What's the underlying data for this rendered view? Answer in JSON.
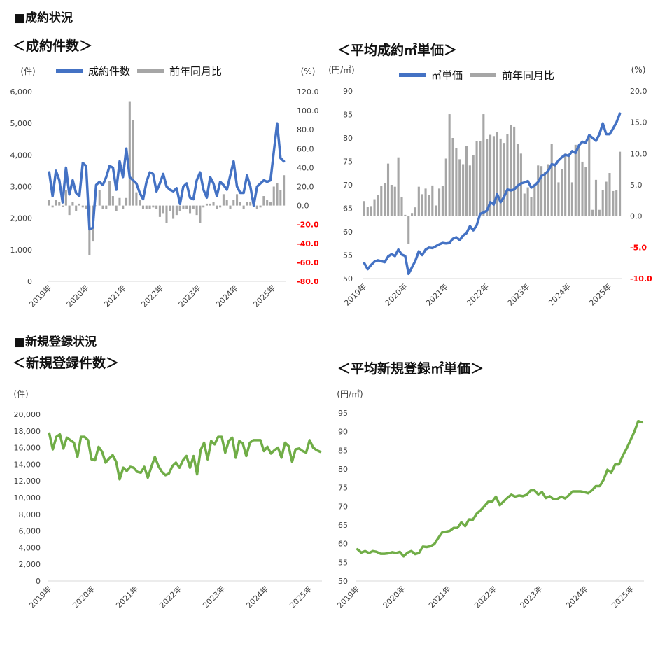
{
  "section1_title": "■成約状況",
  "section2_title": "■新規登録状況",
  "colors": {
    "blue": "#4472c4",
    "gray": "#a6a6a6",
    "green": "#70ad47",
    "red": "#ff0000",
    "axis": "#d9d9d9"
  },
  "chart_data": [
    {
      "id": "contracts",
      "type": "bar+line",
      "title": "＜成約件数＞",
      "left_unit": "(件)",
      "right_unit": "(%)",
      "legend": [
        "成約件数",
        "前年同月比"
      ],
      "x_tick_labels": [
        "2019年",
        "2020年",
        "2021年",
        "2022年",
        "2023年",
        "2024年",
        "2025年"
      ],
      "left_ticks": [
        "6,000",
        "5,000",
        "4,000",
        "3,000",
        "2,000",
        "1,000",
        "0"
      ],
      "left_ylim": [
        0,
        6000
      ],
      "right_ticks": [
        "120.0",
        "100.0",
        "80.0",
        "60.0",
        "40.0",
        "20.0",
        "0.0",
        "-20.0",
        "-40.0",
        "-60.0",
        "-80.0"
      ],
      "right_ylim": [
        -80,
        120
      ],
      "series": [
        {
          "name": "成約件数",
          "kind": "line",
          "values": [
            3450,
            2700,
            3500,
            3200,
            2500,
            3600,
            2750,
            3200,
            2800,
            2700,
            3750,
            3650,
            1650,
            1700,
            3050,
            3150,
            3050,
            3300,
            3650,
            3600,
            2900,
            3800,
            3300,
            4200,
            3300,
            3200,
            3100,
            2800,
            2600,
            3150,
            3450,
            3400,
            2850,
            3100,
            3400,
            3000,
            2900,
            2850,
            2950,
            2450,
            3000,
            3100,
            2650,
            2600,
            3200,
            3450,
            2900,
            2650,
            3300,
            3100,
            2700,
            3150,
            3050,
            2900,
            3350,
            3800,
            3000,
            2800,
            2800,
            3350,
            3000,
            2400,
            3000,
            3100,
            3200,
            3150,
            3200,
            4100,
            5000,
            3900,
            3800
          ]
        },
        {
          "name": "前年同月比",
          "kind": "bar",
          "values": [
            6,
            -2,
            6,
            4,
            -1,
            16,
            -10,
            4,
            -6,
            2,
            -2,
            -4,
            -52,
            -38,
            0,
            16,
            -4,
            -4,
            26,
            10,
            -6,
            8,
            -4,
            8,
            110,
            90,
            14,
            6,
            -4,
            -4,
            -4,
            -2,
            -4,
            -12,
            -8,
            -18,
            -6,
            -14,
            -10,
            -6,
            -4,
            -4,
            -8,
            -4,
            -10,
            -18,
            -2,
            2,
            2,
            4,
            -4,
            -2,
            12,
            6,
            -4,
            6,
            12,
            4,
            -4,
            4,
            4,
            6,
            -4,
            -2,
            10,
            6,
            4,
            20,
            24,
            16,
            32
          ]
        }
      ]
    },
    {
      "id": "contract_price",
      "type": "bar+line",
      "title": "＜平均成約㎡単価＞",
      "left_unit": "(円/㎡)",
      "right_unit": "(%)",
      "legend": [
        "㎡単価",
        "前年同月比"
      ],
      "x_tick_labels": [
        "2019年",
        "2020年",
        "2021年",
        "2022年",
        "2023年",
        "2024年",
        "2025年"
      ],
      "left_ticks": [
        "90",
        "85",
        "80",
        "75",
        "70",
        "65",
        "60",
        "55",
        "50"
      ],
      "left_ylim": [
        50,
        90
      ],
      "right_ticks": [
        "20.0",
        "15.0",
        "10.0",
        "5.0",
        "0.0",
        "-5.0",
        "-10.0"
      ],
      "right_ylim": [
        -10,
        20
      ],
      "series": [
        {
          "name": "㎡単価",
          "kind": "line",
          "values": [
            53.3,
            52.0,
            52.9,
            53.6,
            53.9,
            53.7,
            53.5,
            54.7,
            55.2,
            54.8,
            56.2,
            55.1,
            54.8,
            51.0,
            52.4,
            53.8,
            55.8,
            55.0,
            56.2,
            56.6,
            56.5,
            56.9,
            57.3,
            57.6,
            57.5,
            57.6,
            58.5,
            58.8,
            58.2,
            59.2,
            59.7,
            61.2,
            60.3,
            61.4,
            63.8,
            64.1,
            64.5,
            66.3,
            65.8,
            68.0,
            66.3,
            67.4,
            69.0,
            68.8,
            69.0,
            69.8,
            70.3,
            70.5,
            70.8,
            69.4,
            69.9,
            70.6,
            71.9,
            72.3,
            73.0,
            74.4,
            74.2,
            75.2,
            75.9,
            76.4,
            76.2,
            77.2,
            76.8,
            78.4,
            79.2,
            79.0,
            80.6,
            80.0,
            79.4,
            80.8,
            83.1,
            80.8,
            80.8,
            82.0,
            83.3,
            85.2
          ]
        },
        {
          "name": "前年同月比",
          "kind": "bar",
          "values": [
            2.4,
            1.5,
            1.6,
            2.7,
            3.4,
            4.8,
            5.3,
            8.4,
            5.0,
            4.7,
            9.4,
            3.0,
            0.2,
            -4.5,
            0.5,
            1.4,
            4.7,
            3.5,
            4.4,
            3.4,
            4.9,
            1.7,
            4.4,
            4.8,
            9.2,
            16.3,
            12.5,
            10.9,
            9.1,
            8.3,
            11.2,
            8.1,
            9.7,
            12.0,
            12.0,
            16.3,
            12.3,
            13.0,
            12.8,
            13.4,
            12.4,
            11.7,
            13.1,
            14.6,
            14.3,
            11.6,
            10.0,
            3.6,
            4.6,
            3.0,
            5.1,
            8.1,
            8.0,
            7.1,
            8.3,
            11.5,
            8.2,
            5.4,
            7.5,
            10.0,
            10.0,
            5.4,
            11.4,
            11.3,
            8.7,
            7.9,
            12.7,
            1.0,
            5.8,
            1.0,
            4.2,
            5.5,
            6.9,
            4.0,
            4.1,
            10.3
          ]
        }
      ]
    },
    {
      "id": "registrations",
      "type": "line",
      "title": "＜新規登録件数＞",
      "left_unit": "(件)",
      "x_tick_labels": [
        "2019年",
        "2020年",
        "2021年",
        "2022年",
        "2023年",
        "2024年",
        "2025年"
      ],
      "left_ticks": [
        "20,000",
        "18,000",
        "16,000",
        "14,000",
        "12,000",
        "10,000",
        "8,000",
        "6,000",
        "4,000",
        "2,000",
        "0"
      ],
      "left_ylim": [
        0,
        20000
      ],
      "series": [
        {
          "name": "新規登録件数",
          "kind": "line",
          "values": [
            17700,
            15800,
            17300,
            17600,
            15900,
            17200,
            16900,
            16600,
            14900,
            17300,
            17300,
            16900,
            14600,
            14500,
            16100,
            15500,
            14200,
            14700,
            15100,
            14300,
            12200,
            13600,
            13200,
            13700,
            13600,
            13100,
            13000,
            13700,
            12400,
            13700,
            14900,
            13800,
            13100,
            12700,
            12900,
            13800,
            14200,
            13600,
            14500,
            15000,
            13600,
            15000,
            12800,
            15700,
            16600,
            14600,
            16800,
            16400,
            17300,
            17300,
            15400,
            16800,
            17200,
            14800,
            16800,
            16500,
            15000,
            16600,
            16900,
            16900,
            16900,
            15600,
            16100,
            15300,
            15700,
            16000,
            14800,
            16600,
            16200,
            14300,
            15800,
            15900,
            15600,
            15400,
            16900,
            16000,
            15700,
            15500
          ]
        }
      ]
    },
    {
      "id": "registration_price",
      "type": "line",
      "title": "＜平均新規登録㎡単価＞",
      "left_unit": "(円/㎡)",
      "x_tick_labels": [
        "2019年",
        "2020年",
        "2021年",
        "2022年",
        "2023年",
        "2024年",
        "2025年"
      ],
      "left_ticks": [
        "95",
        "90",
        "85",
        "80",
        "75",
        "70",
        "65",
        "60",
        "55",
        "50"
      ],
      "left_ylim": [
        50,
        95
      ],
      "series": [
        {
          "name": "平均新規登録㎡単価",
          "kind": "line",
          "values": [
            58.5,
            57.6,
            58.0,
            57.5,
            58.0,
            57.8,
            57.3,
            57.3,
            57.4,
            57.7,
            57.5,
            57.8,
            56.6,
            57.6,
            58.0,
            57.2,
            57.5,
            59.2,
            59.1,
            59.3,
            59.9,
            61.5,
            63.0,
            63.2,
            63.4,
            64.2,
            64.2,
            65.7,
            64.7,
            66.5,
            66.4,
            68.0,
            68.9,
            70.0,
            71.2,
            71.2,
            72.6,
            70.3,
            71.3,
            72.3,
            73.1,
            72.6,
            72.9,
            72.7,
            73.1,
            74.2,
            74.3,
            73.2,
            73.8,
            72.2,
            72.7,
            71.9,
            72.0,
            72.6,
            72.1,
            73.0,
            74.0,
            74.0,
            74.0,
            73.8,
            73.5,
            74.3,
            75.4,
            75.4,
            77.1,
            79.8,
            79.0,
            81.2,
            81.2,
            83.6,
            85.5,
            87.7,
            90.0,
            92.8,
            92.5
          ]
        }
      ]
    }
  ]
}
